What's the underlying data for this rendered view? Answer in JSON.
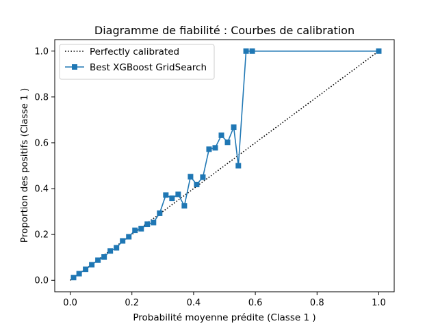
{
  "chart_data": {
    "type": "line",
    "title": "Diagramme de fiabilité : Courbes de calibration",
    "xlabel": "Probabilité moyenne prédite (Classe 1 )",
    "ylabel": "Proportion des positifs (Classe 1 )",
    "xlim": [
      -0.05,
      1.05
    ],
    "ylim": [
      -0.05,
      1.05
    ],
    "xticks": [
      0.0,
      0.2,
      0.4,
      0.6,
      0.8,
      1.0
    ],
    "yticks": [
      0.0,
      0.2,
      0.4,
      0.6,
      0.8,
      1.0
    ],
    "tick_labels": [
      "0.0",
      "0.2",
      "0.4",
      "0.6",
      "0.8",
      "1.0"
    ],
    "grid": false,
    "legend_position": "top-left",
    "series": [
      {
        "name": "Perfectly calibrated",
        "style": "dotted",
        "color": "#000000",
        "x": [
          0.0,
          1.0
        ],
        "y": [
          0.0,
          1.0
        ]
      },
      {
        "name": "Best XGBoost GridSearch",
        "style": "solid-square-markers",
        "color": "#1f77b4",
        "x": [
          0.011,
          0.029,
          0.05,
          0.07,
          0.09,
          0.11,
          0.13,
          0.15,
          0.17,
          0.19,
          0.21,
          0.23,
          0.25,
          0.27,
          0.29,
          0.31,
          0.33,
          0.35,
          0.37,
          0.39,
          0.41,
          0.43,
          0.45,
          0.47,
          0.49,
          0.51,
          0.53,
          0.545,
          0.57,
          0.59,
          1.0
        ],
        "y": [
          0.012,
          0.029,
          0.048,
          0.068,
          0.088,
          0.102,
          0.128,
          0.142,
          0.172,
          0.19,
          0.218,
          0.225,
          0.245,
          0.252,
          0.293,
          0.372,
          0.358,
          0.375,
          0.325,
          0.452,
          0.418,
          0.45,
          0.572,
          0.578,
          0.633,
          0.602,
          0.668,
          0.5,
          1.0,
          1.0,
          1.0
        ]
      }
    ]
  }
}
